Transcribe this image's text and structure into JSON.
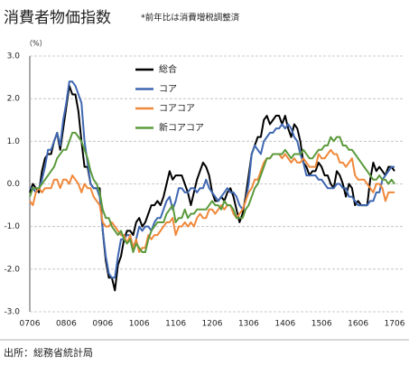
{
  "chart_data": {
    "type": "line",
    "title": "消費者物価指数",
    "subtitle": "*前年比は消費増税調整済",
    "y_label": "（%）",
    "source": "出所：総務省統計局",
    "categories": [
      "0706",
      null,
      null,
      null,
      null,
      null,
      null,
      null,
      null,
      null,
      null,
      null,
      "0806",
      null,
      null,
      null,
      null,
      null,
      null,
      null,
      null,
      null,
      null,
      null,
      "0906",
      null,
      null,
      null,
      null,
      null,
      null,
      null,
      null,
      null,
      null,
      null,
      "1006",
      null,
      null,
      null,
      null,
      null,
      null,
      null,
      null,
      null,
      null,
      null,
      "1106",
      null,
      null,
      null,
      null,
      null,
      null,
      null,
      null,
      null,
      null,
      null,
      "1206",
      null,
      null,
      null,
      null,
      null,
      null,
      null,
      null,
      null,
      null,
      null,
      "1306",
      null,
      null,
      null,
      null,
      null,
      null,
      null,
      null,
      null,
      null,
      null,
      "1406",
      null,
      null,
      null,
      null,
      null,
      null,
      null,
      null,
      null,
      null,
      null,
      "1506",
      null,
      null,
      null,
      null,
      null,
      null,
      null,
      null,
      null,
      null,
      null,
      "1606",
      null,
      null,
      null,
      null,
      null,
      null,
      null,
      null,
      null,
      null,
      null,
      "1706"
    ],
    "series": [
      {
        "name": "総合",
        "color": "#000000",
        "values": [
          -0.2,
          0,
          -0.1,
          -0.2,
          0.3,
          0.6,
          0.7,
          0.7,
          1.0,
          1.2,
          0.8,
          1.3,
          1.8,
          2.3,
          2.1,
          2.1,
          1.7,
          1.0,
          0.4,
          0.4,
          0,
          -0.1,
          -0.1,
          -0.1,
          -1.1,
          -1.8,
          -2.2,
          -2.2,
          -2.5,
          -1.9,
          -1.7,
          -1.3,
          -1.1,
          -1.1,
          -1.2,
          -0.9,
          -0.8,
          -1.0,
          -0.9,
          -0.7,
          -0.5,
          -0.5,
          -0.4,
          -0.5,
          -0.3,
          0.0,
          0.3,
          0.1,
          0.2,
          0.2,
          0.2,
          0,
          -0.2,
          -0.5,
          -0.2,
          0.1,
          0.3,
          0.5,
          0.4,
          0.2,
          -0.2,
          -0.4,
          -0.4,
          -0.3,
          -0.4,
          -0.2,
          -0.1,
          -0.3,
          -0.6,
          -0.9,
          -0.7,
          -0.3,
          0.2,
          0.7,
          0.9,
          1.1,
          1.1,
          1.5,
          1.6,
          1.4,
          1.5,
          1.6,
          1.6,
          1.4,
          1.6,
          1.3,
          1.1,
          1.4,
          1.3,
          1.0,
          0.5,
          0.4,
          0.2,
          0.3,
          0.3,
          0.5,
          0.4,
          0.2,
          0.2,
          0,
          -0.1,
          0.3,
          0.2,
          0,
          -0.3,
          0,
          -0.1,
          -0.5,
          -0.4,
          -0.5,
          -0.5,
          -0.5,
          0.1,
          0.5,
          0.3,
          0.4,
          0.3,
          0.2,
          0.4,
          0.4,
          0.3
        ]
      },
      {
        "name": "コア",
        "color": "#3f67b1",
        "values": [
          -0.1,
          -0.1,
          -0.2,
          -0.1,
          0.1,
          0.4,
          0.8,
          0.8,
          1.0,
          1.2,
          0.9,
          1.5,
          1.9,
          2.4,
          2.4,
          2.3,
          2.1,
          1.9,
          1.0,
          0.5,
          0,
          -0.1,
          -0.1,
          -0.3,
          -1.1,
          -1.7,
          -2.1,
          -2.2,
          -2.2,
          -1.7,
          -1.3,
          -1.3,
          -1.2,
          -1.2,
          -1.5,
          -1.3,
          -1.0,
          -1.1,
          -1.0,
          -1.0,
          -1.1,
          -0.9,
          -0.8,
          -0.8,
          -0.6,
          -0.4,
          -0.3,
          -0.6,
          -0.4,
          -0.1,
          -0.1,
          -0.2,
          -0.2,
          -0.1,
          -0.1,
          -0.2,
          -0.1,
          -0.1,
          0.1,
          -0.1,
          -0.2,
          -0.3,
          -0.4,
          -0.3,
          -0.2,
          -0.1,
          -0.2,
          -0.2,
          -0.3,
          -0.5,
          -0.6,
          -0.4,
          0,
          0.7,
          0.9,
          0.8,
          0.7,
          1.0,
          1.1,
          1.2,
          1.2,
          1.3,
          1.3,
          1.4,
          1.3,
          1.4,
          1.3,
          1.1,
          1.0,
          0.7,
          0.5,
          0.2,
          0.2,
          0.2,
          0.2,
          0.1,
          0.1,
          0,
          -0.1,
          -0.1,
          -0.1,
          0,
          0,
          -0.1,
          -0.1,
          -0.3,
          -0.3,
          -0.4,
          -0.5,
          -0.5,
          -0.5,
          -0.5,
          -0.4,
          -0.4,
          -0.2,
          -0.2,
          0.1,
          0.2,
          0.3,
          0.4,
          0.4
        ]
      },
      {
        "name": "コアコア",
        "color": "#f0883a",
        "values": [
          -0.4,
          -0.5,
          -0.2,
          -0.1,
          -0.2,
          -0.1,
          -0.1,
          -0.1,
          0.1,
          0.1,
          -0.1,
          0.1,
          0.1,
          0,
          0.2,
          0.1,
          0.0,
          -0.2,
          0,
          -0.1,
          -0.1,
          -0.3,
          -0.4,
          -0.5,
          -0.9,
          -1.0,
          -1.0,
          -0.9,
          -1.0,
          -1.1,
          -1.2,
          -1.2,
          -1.4,
          -1.2,
          -1.5,
          -1.3,
          -1.6,
          -1.5,
          -1.5,
          -1.2,
          -1.3,
          -1.2,
          -1.2,
          -1.1,
          -1.0,
          -0.9,
          -0.9,
          -0.8,
          -1.2,
          -1.0,
          -1.0,
          -0.9,
          -1.0,
          -0.9,
          -1.0,
          -0.8,
          -0.7,
          -0.8,
          -0.8,
          -0.6,
          -0.6,
          -0.7,
          -0.6,
          -0.5,
          -0.6,
          -0.5,
          -0.5,
          -0.7,
          -0.8,
          -0.7,
          -0.6,
          -0.4,
          -0.2,
          -0.1,
          0.1,
          0.1,
          0.3,
          0.5,
          0.6,
          0.6,
          0.7,
          0.7,
          0.7,
          0.6,
          0.7,
          0.6,
          0.5,
          0.6,
          0.5,
          0.5,
          0.6,
          0.5,
          0.4,
          0.4,
          0.4,
          0.7,
          0.6,
          0.6,
          0.7,
          0.8,
          0.7,
          0.7,
          0.5,
          0.5,
          0.4,
          0.5,
          0.6,
          0.2,
          0.1,
          0.1,
          0.1,
          0,
          -0.1,
          -0.2,
          0,
          0,
          -0.1,
          -0.4,
          -0.2,
          -0.2,
          -0.2
        ]
      },
      {
        "name": "新コアコア",
        "color": "#5b9a3c",
        "values": [
          -0.3,
          -0.1,
          -0.1,
          -0.1,
          0,
          0.1,
          0.2,
          0.3,
          0.4,
          0.6,
          0.7,
          0.8,
          0.8,
          1.0,
          1.2,
          1.2,
          1.1,
          1.0,
          0.8,
          0.6,
          0.3,
          0.1,
          0,
          -0.2,
          -0.6,
          -0.8,
          -0.8,
          -1.0,
          -1.1,
          -1.2,
          -1.1,
          -1.3,
          -1.4,
          -1.3,
          -1.6,
          -1.4,
          -1.5,
          -1.6,
          -1.6,
          -1.3,
          -1.1,
          -1.0,
          -0.9,
          -0.9,
          -0.9,
          -0.7,
          -0.6,
          -0.5,
          -0.9,
          -0.8,
          -0.8,
          -0.6,
          -0.8,
          -0.7,
          -0.7,
          -0.6,
          -0.6,
          -0.6,
          -0.6,
          -0.5,
          -0.4,
          -0.5,
          -0.5,
          -0.6,
          -0.4,
          -0.5,
          -0.5,
          -0.6,
          -0.8,
          -0.8,
          -0.8,
          -0.6,
          -0.5,
          -0.3,
          -0.1,
          0.0,
          0.2,
          0.4,
          0.6,
          0.6,
          0.7,
          0.7,
          0.7,
          0.7,
          0.8,
          0.7,
          0.6,
          0.7,
          0.7,
          0.7,
          0.8,
          0.7,
          0.6,
          0.6,
          0.7,
          0.8,
          0.8,
          0.9,
          0.9,
          1.1,
          1.0,
          1.1,
          1.1,
          0.9,
          0.9,
          0.8,
          0.8,
          0.7,
          0.6,
          0.5,
          0.4,
          0.3,
          0.2,
          0.1,
          0.1,
          0.2,
          0.1,
          0.1,
          0.0,
          0.1,
          0
        ]
      }
    ],
    "ylim": [
      -3,
      3
    ],
    "yticks": [
      {
        "value": -3,
        "label": "-3.0"
      },
      {
        "value": -2,
        "label": "-2.0"
      },
      {
        "value": -1,
        "label": "-1.0"
      },
      {
        "value": 0,
        "label": "0.0"
      },
      {
        "value": 1,
        "label": "1.0"
      },
      {
        "value": 2,
        "label": "2.0"
      },
      {
        "value": 3,
        "label": "3.0"
      }
    ],
    "grid": true
  }
}
